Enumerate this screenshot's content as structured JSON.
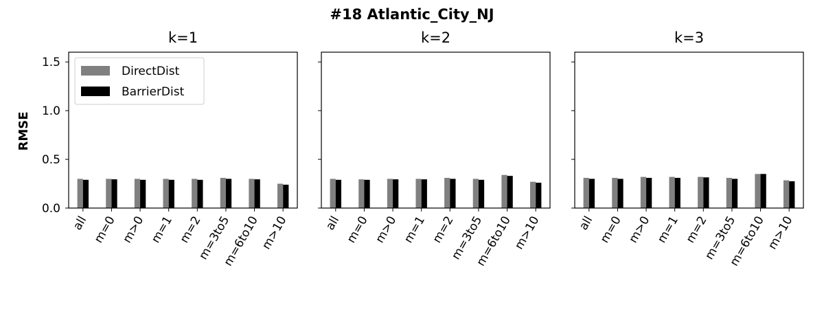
{
  "figure_title": "#18 Atlantic_City_NJ",
  "chart_data": {
    "type": "bar",
    "ylabel": "RMSE",
    "ylim": [
      0,
      1.6
    ],
    "yticks": [
      "0.0",
      "0.5",
      "1.0",
      "1.5"
    ],
    "categories": [
      "all",
      "m=0",
      "m>0",
      "m=1",
      "m=2",
      "m=3to5",
      "m=6to10",
      "m>10"
    ],
    "series_colors": {
      "DirectDist": "#808080",
      "BarrierDist": "#000000"
    },
    "legend": {
      "entries": [
        "DirectDist",
        "BarrierDist"
      ],
      "placement": "upper-left of first panel"
    },
    "grid": false,
    "panels": [
      {
        "title": "k=1",
        "series": [
          {
            "name": "DirectDist",
            "values": [
              0.3,
              0.3,
              0.3,
              0.3,
              0.3,
              0.31,
              0.3,
              0.25
            ]
          },
          {
            "name": "BarrierDist",
            "values": [
              0.29,
              0.295,
              0.29,
              0.29,
              0.29,
              0.3,
              0.295,
              0.24
            ]
          }
        ]
      },
      {
        "title": "k=2",
        "series": [
          {
            "name": "DirectDist",
            "values": [
              0.3,
              0.295,
              0.3,
              0.3,
              0.31,
              0.3,
              0.34,
              0.27
            ]
          },
          {
            "name": "BarrierDist",
            "values": [
              0.29,
              0.29,
              0.295,
              0.295,
              0.3,
              0.29,
              0.33,
              0.26
            ]
          }
        ]
      },
      {
        "title": "k=3",
        "series": [
          {
            "name": "DirectDist",
            "values": [
              0.31,
              0.31,
              0.32,
              0.32,
              0.32,
              0.31,
              0.35,
              0.285
            ]
          },
          {
            "name": "BarrierDist",
            "values": [
              0.3,
              0.3,
              0.31,
              0.31,
              0.315,
              0.3,
              0.35,
              0.275
            ]
          }
        ]
      }
    ]
  }
}
